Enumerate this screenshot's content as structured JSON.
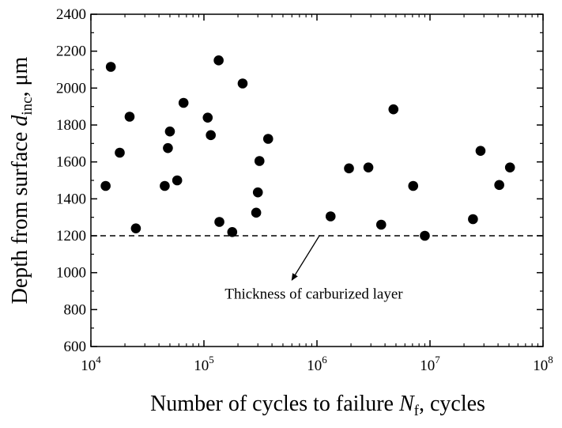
{
  "chart_data": {
    "type": "scatter",
    "xscale": "log",
    "xlim": [
      10000,
      100000000
    ],
    "ylim": [
      600,
      2400
    ],
    "grid": false,
    "xlabel": {
      "text": "Number of cycles to failure ",
      "var": "N",
      "sub": "f",
      "suffix": ", cycles"
    },
    "ylabel": {
      "text": "Depth from surface ",
      "var": "d",
      "sub": "inc",
      "suffix": ", μm"
    },
    "x_ticks": [
      {
        "base": "10",
        "exp": "4",
        "value": 10000
      },
      {
        "base": "10",
        "exp": "5",
        "value": 100000
      },
      {
        "base": "10",
        "exp": "6",
        "value": 1000000
      },
      {
        "base": "10",
        "exp": "7",
        "value": 10000000
      },
      {
        "base": "10",
        "exp": "8",
        "value": 100000000
      }
    ],
    "y_ticks": [
      "600",
      "800",
      "1000",
      "1200",
      "1400",
      "1600",
      "1800",
      "2000",
      "2200",
      "2400"
    ],
    "reference_line": {
      "y": 1200,
      "style": "dashed"
    },
    "annotation": {
      "text": "Thickness of carburized layer",
      "text_anchor_point": {
        "x": 1000000,
        "y": 890
      },
      "arrow_from": {
        "x": 1050000,
        "y": 1200
      },
      "arrow_to": {
        "x": 600000,
        "y": 960
      }
    },
    "series": [
      {
        "points": [
          {
            "x": 13500,
            "y": 1470
          },
          {
            "x": 15000,
            "y": 2115
          },
          {
            "x": 18000,
            "y": 1650
          },
          {
            "x": 22000,
            "y": 1845
          },
          {
            "x": 25000,
            "y": 1240
          },
          {
            "x": 45000,
            "y": 1470
          },
          {
            "x": 48000,
            "y": 1675
          },
          {
            "x": 50000,
            "y": 1765
          },
          {
            "x": 58000,
            "y": 1500
          },
          {
            "x": 66000,
            "y": 1920
          },
          {
            "x": 108000,
            "y": 1840
          },
          {
            "x": 115000,
            "y": 1745
          },
          {
            "x": 135000,
            "y": 2150
          },
          {
            "x": 137000,
            "y": 1275
          },
          {
            "x": 178000,
            "y": 1220
          },
          {
            "x": 220000,
            "y": 2025
          },
          {
            "x": 290000,
            "y": 1325
          },
          {
            "x": 300000,
            "y": 1435
          },
          {
            "x": 310000,
            "y": 1605
          },
          {
            "x": 370000,
            "y": 1725
          },
          {
            "x": 1320000,
            "y": 1305
          },
          {
            "x": 1920000,
            "y": 1565
          },
          {
            "x": 2850000,
            "y": 1570
          },
          {
            "x": 3700000,
            "y": 1260
          },
          {
            "x": 4750000,
            "y": 1885
          },
          {
            "x": 7100000,
            "y": 1470
          },
          {
            "x": 9000000,
            "y": 1200
          },
          {
            "x": 24000000,
            "y": 1290
          },
          {
            "x": 28000000,
            "y": 1660
          },
          {
            "x": 41000000,
            "y": 1475
          },
          {
            "x": 51000000,
            "y": 1570
          }
        ]
      }
    ]
  }
}
